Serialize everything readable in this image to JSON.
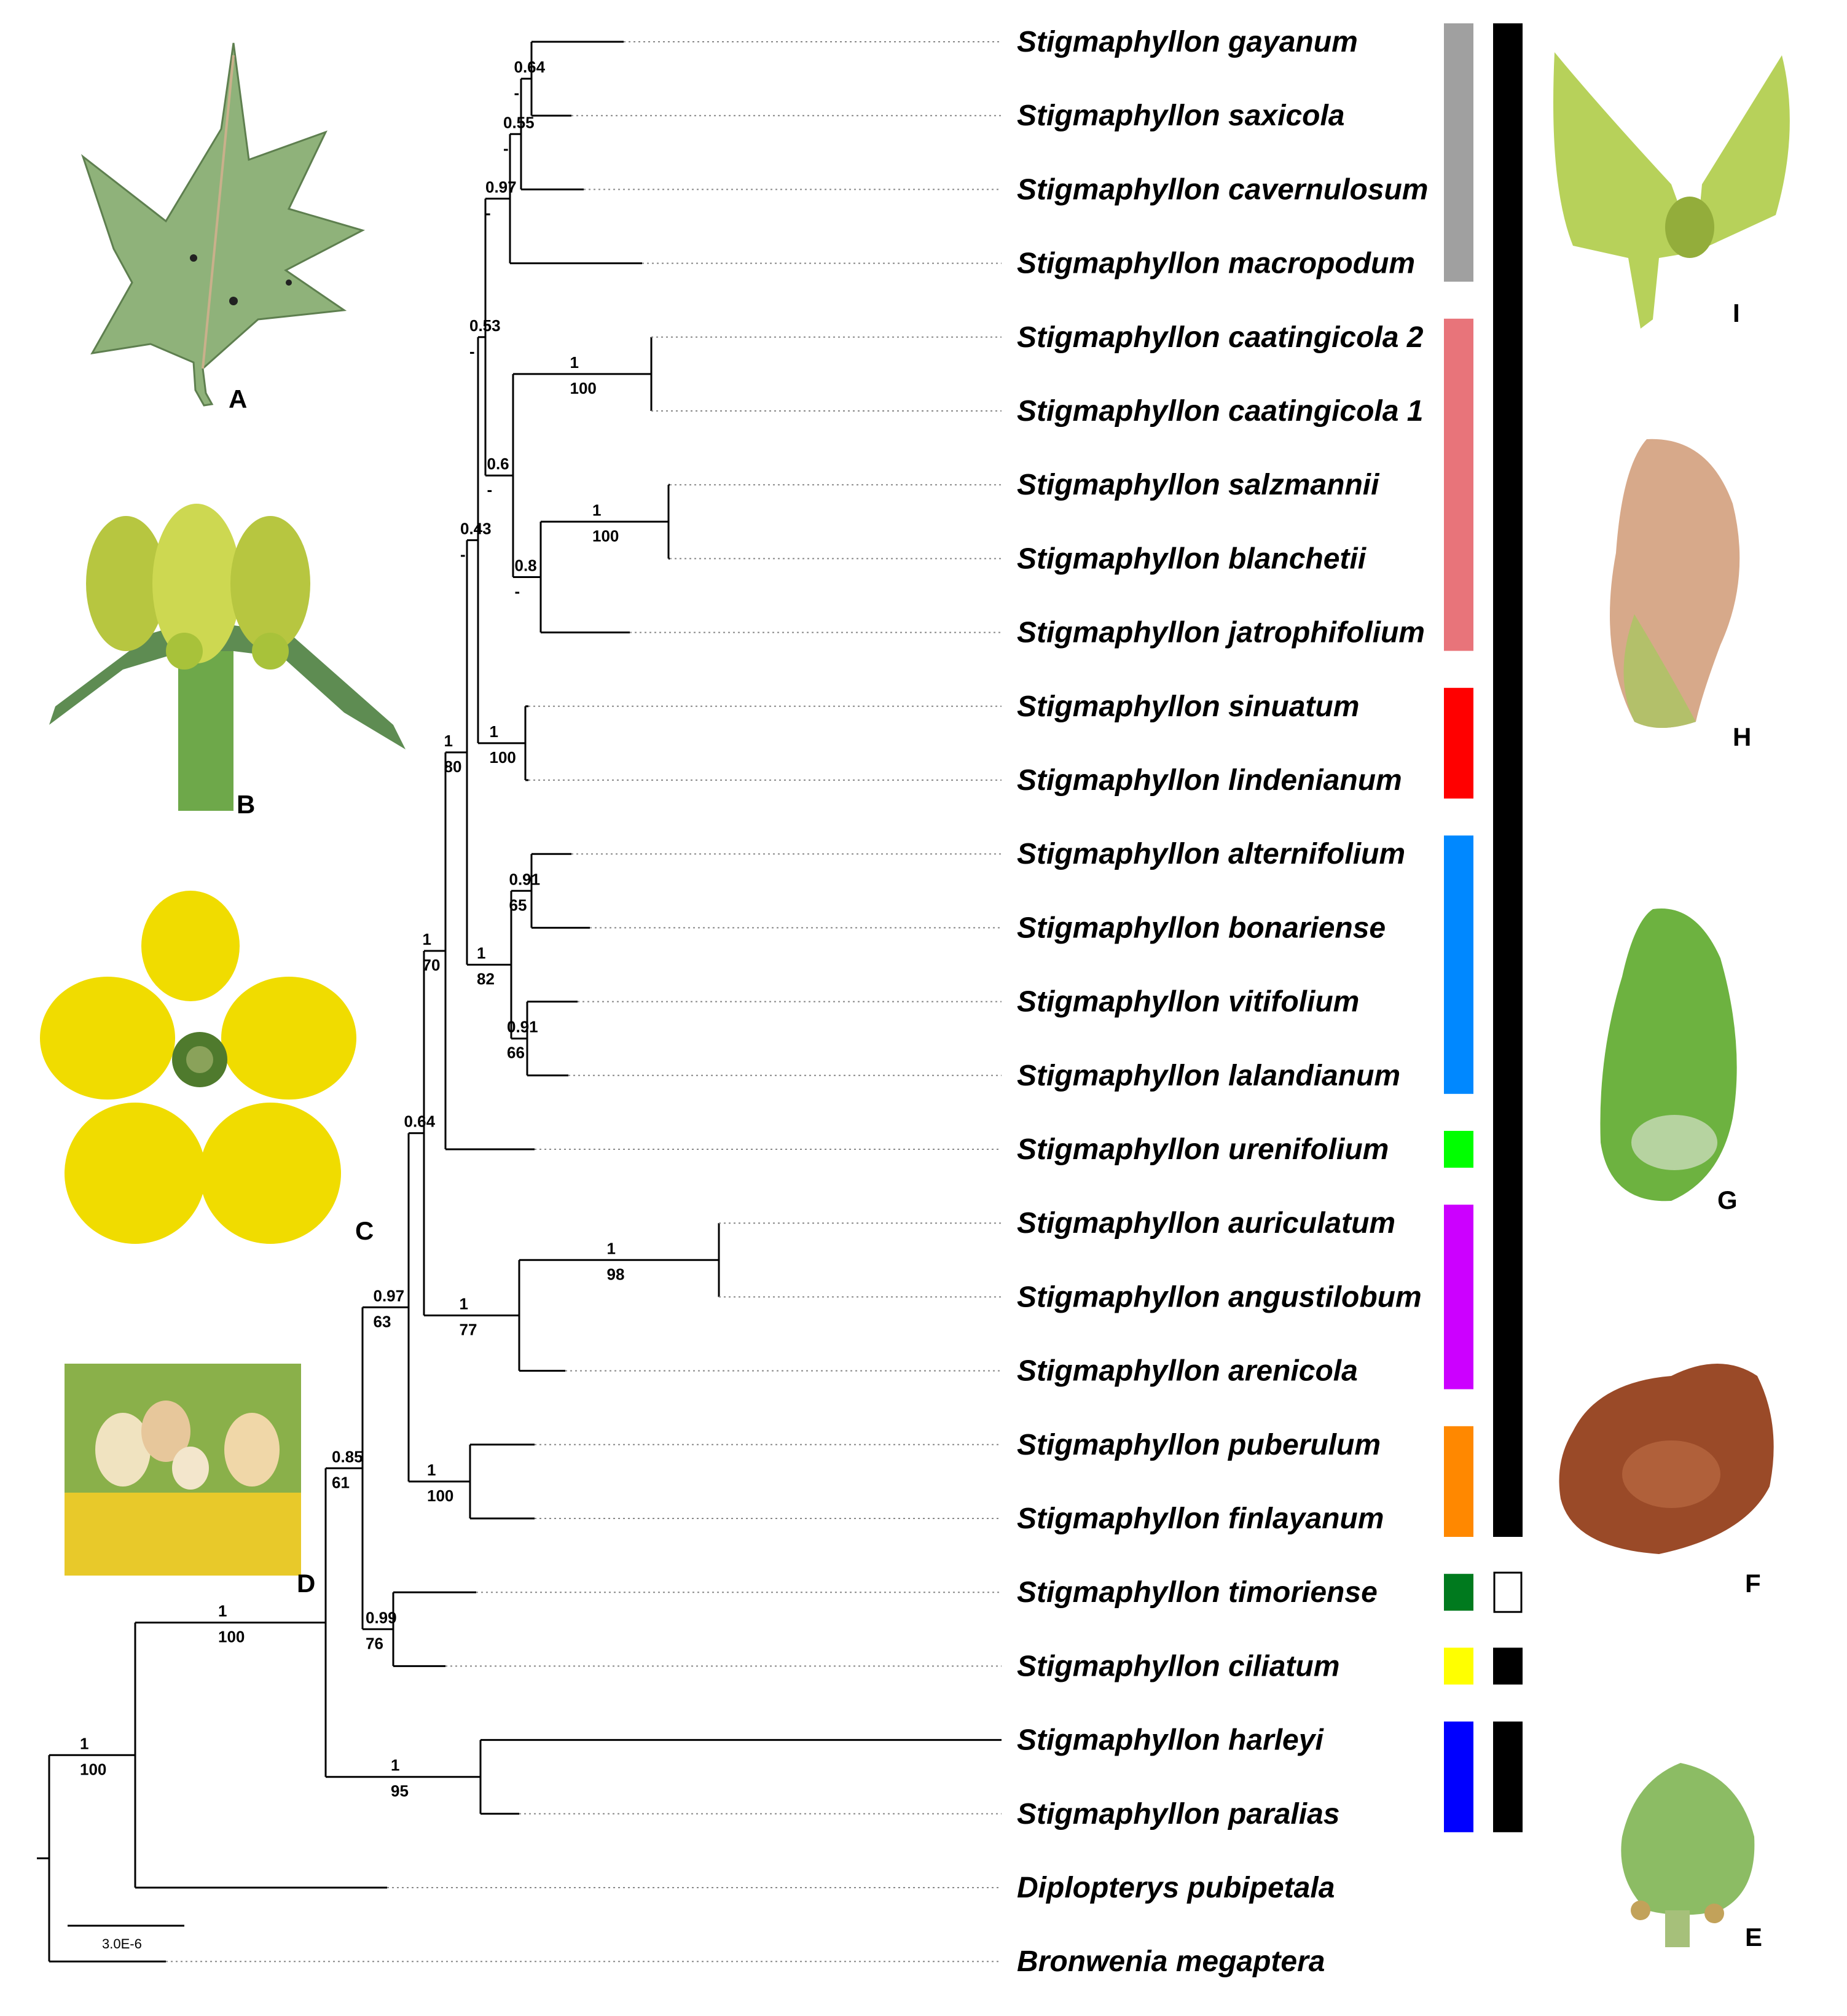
{
  "tree": {
    "taxa": [
      "Stigmaphyllon gayanum",
      "Stigmaphyllon saxicola",
      "Stigmaphyllon cavernulosum",
      "Stigmaphyllon macropodum",
      "Stigmaphyllon caatingicola 2",
      "Stigmaphyllon caatingicola 1",
      "Stigmaphyllon salzmannii",
      "Stigmaphyllon blanchetii",
      "Stigmaphyllon jatrophifolium",
      "Stigmaphyllon sinuatum",
      "Stigmaphyllon lindenianum",
      "Stigmaphyllon alternifolium",
      "Stigmaphyllon bonariense",
      "Stigmaphyllon vitifolium",
      "Stigmaphyllon lalandianum",
      "Stigmaphyllon urenifolium",
      "Stigmaphyllon auriculatum",
      "Stigmaphyllon angustilobum",
      "Stigmaphyllon arenicola",
      "Stigmaphyllon puberulum",
      "Stigmaphyllon finlayanum",
      "Stigmaphyllon timoriense",
      "Stigmaphyllon ciliatum",
      "Stigmaphyllon harleyi",
      "Stigmaphyllon paralias",
      "Diplopterys pubipetala",
      "Bronwenia megaptera"
    ],
    "node_support": [
      {
        "node": "gayanum+saxicola",
        "pp": "0.64",
        "bs": "-"
      },
      {
        "node": "gayanum+saxicola+cavernulosum",
        "pp": "0.55",
        "bs": "-"
      },
      {
        "node": "grey clade",
        "pp": "0.97",
        "bs": "-"
      },
      {
        "node": "grey+pink clades",
        "pp": "0.53",
        "bs": "-"
      },
      {
        "node": "caatingicola",
        "pp": "1",
        "bs": "100"
      },
      {
        "node": "pink clade",
        "pp": "0.6",
        "bs": "-"
      },
      {
        "node": "salzmannii+blanchetii",
        "pp": "1",
        "bs": "100"
      },
      {
        "node": "salzmannii+blanchetii+jatrophifolium",
        "pp": "0.8",
        "bs": "-"
      },
      {
        "node": "grey+pink+red clades",
        "pp": "0.43",
        "bs": "-"
      },
      {
        "node": "sinuatum+lindenianum",
        "pp": "1",
        "bs": "100"
      },
      {
        "node": "alternifolium+bonariense",
        "pp": "0.91",
        "bs": "65"
      },
      {
        "node": "vitifolium+lalandianum",
        "pp": "0.91",
        "bs": "66"
      },
      {
        "node": "blue clade",
        "pp": "1",
        "bs": "82"
      },
      {
        "node": "crown clade",
        "pp": "1",
        "bs": "80"
      },
      {
        "node": "crown+urenifolium",
        "pp": "1",
        "bs": "70"
      },
      {
        "node": "auriculatum+angustilobum",
        "pp": "1",
        "bs": "98"
      },
      {
        "node": "purple clade",
        "pp": "1",
        "bs": "77"
      },
      {
        "node": "crown+urenifolium+purple",
        "pp": "0.64",
        "bs": ""
      },
      {
        "node": "puberulum+finlayanum",
        "pp": "1",
        "bs": "100"
      },
      {
        "node": "clade incl. orange",
        "pp": "0.97",
        "bs": "63"
      },
      {
        "node": "timoriense+ciliatum",
        "pp": "0.99",
        "bs": "76"
      },
      {
        "node": "clade excl. harleyi",
        "pp": "0.85",
        "bs": "61"
      },
      {
        "node": "harleyi+paralias",
        "pp": "1",
        "bs": "95"
      },
      {
        "node": "Stigmaphyllon",
        "pp": "1",
        "bs": "100"
      },
      {
        "node": "root ingroup",
        "pp": "1",
        "bs": "100"
      }
    ],
    "scale_bar_label": "3.0E-6"
  },
  "clade_bars": {
    "colors": [
      "#a0a0a0",
      "#e8747a",
      "#ff0000",
      "#0088ff",
      "#00ff00",
      "#cc00ff",
      "#ff8800",
      "#007a1e",
      "#ffff00",
      "#0000ff"
    ],
    "black": "#000000"
  },
  "photo_panels": [
    "A",
    "B",
    "C",
    "D",
    "I",
    "H",
    "G",
    "F",
    "E"
  ]
}
